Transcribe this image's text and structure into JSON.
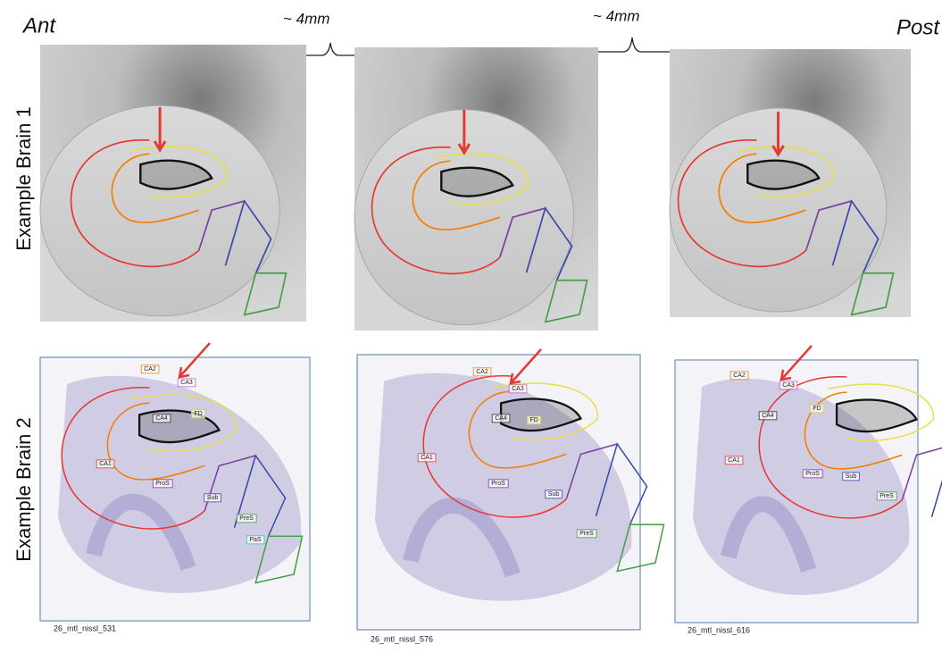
{
  "header": {
    "left": "Ant",
    "right": "Post",
    "spacings": [
      "~ 4mm",
      "~ 4mm"
    ]
  },
  "rows": [
    {
      "label": "Example Brain 1"
    },
    {
      "label": "Example Brain 2",
      "panels": [
        {
          "caption": "26_mtl_nissl_531",
          "regions": [
            "CA2",
            "CA3",
            "CA4",
            "FD",
            "CA1",
            "ProS",
            "Sub",
            "PreS",
            "PaS"
          ]
        },
        {
          "caption": "26_mtl_nissl_576",
          "regions": [
            "CA2",
            "CA3",
            "CA4",
            "FD",
            "CA1",
            "ProS",
            "Sub",
            "PreS"
          ]
        },
        {
          "caption": "26_mtl_nissl_616",
          "regions": [
            "CA2",
            "CA3",
            "CA4",
            "FD",
            "CA1",
            "ProS",
            "Sub",
            "PreS"
          ]
        }
      ]
    }
  ]
}
